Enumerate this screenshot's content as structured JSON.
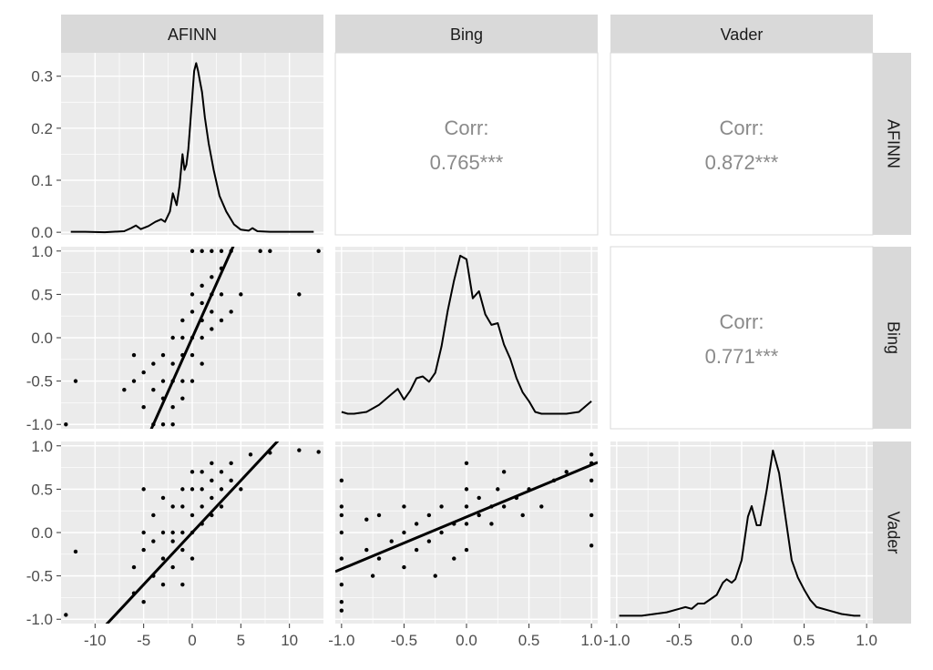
{
  "chart_data": {
    "type": "scatter",
    "variables": [
      "AFINN",
      "Bing",
      "Vader"
    ],
    "axes": {
      "AFINN": {
        "lim": [
          -13.5,
          13.5
        ],
        "ticks": [
          -10,
          -5,
          0,
          5,
          10
        ],
        "tick_labels": [
          "-10",
          "-5",
          "0",
          "5",
          "10"
        ]
      },
      "Bing": {
        "lim": [
          -1.05,
          1.05
        ],
        "ticks": [
          -1,
          -0.5,
          0,
          0.5,
          1
        ],
        "tick_labels": [
          "-1.0",
          "-0.5",
          "0.0",
          "0.5",
          "1.0"
        ]
      },
      "Vader": {
        "lim": [
          -1.05,
          1.05
        ],
        "ticks": [
          -1,
          -0.5,
          0,
          0.5,
          1
        ],
        "tick_labels": [
          "-1.0",
          "-0.5",
          "0.0",
          "0.5",
          "1.0"
        ]
      }
    },
    "density_axis": {
      "lim": [
        -0.005,
        0.345
      ],
      "ticks": [
        0,
        0.1,
        0.2,
        0.3
      ],
      "tick_labels": [
        "0.0",
        "0.1",
        "0.2",
        "0.3"
      ]
    },
    "densities": [
      {
        "variable": "AFINN",
        "x": [
          -12.5,
          -11,
          -9,
          -7,
          -6.3,
          -5.8,
          -5.3,
          -4.5,
          -3.8,
          -3.2,
          -2.8,
          -2.3,
          -2.0,
          -1.6,
          -1.3,
          -1.0,
          -0.8,
          -0.6,
          -0.4,
          -0.2,
          0.0,
          0.2,
          0.4,
          0.6,
          0.8,
          1.0,
          1.3,
          1.7,
          2.2,
          2.8,
          3.5,
          4.3,
          5,
          5.8,
          6.2,
          6.7,
          8,
          10,
          12.5
        ],
        "y": [
          0.001,
          0.001,
          0.0,
          0.002,
          0.008,
          0.013,
          0.006,
          0.012,
          0.02,
          0.025,
          0.02,
          0.04,
          0.075,
          0.052,
          0.09,
          0.15,
          0.12,
          0.13,
          0.16,
          0.21,
          0.26,
          0.31,
          0.325,
          0.31,
          0.29,
          0.27,
          0.22,
          0.17,
          0.12,
          0.07,
          0.04,
          0.015,
          0.005,
          0.003,
          0.008,
          0.002,
          0.001,
          0.001,
          0.001
        ]
      },
      {
        "variable": "Bing",
        "x": [
          -1.0,
          -0.95,
          -0.9,
          -0.8,
          -0.7,
          -0.6,
          -0.55,
          -0.5,
          -0.45,
          -0.4,
          -0.35,
          -0.3,
          -0.25,
          -0.2,
          -0.15,
          -0.1,
          -0.05,
          0.0,
          0.05,
          0.1,
          0.15,
          0.2,
          0.25,
          0.3,
          0.35,
          0.4,
          0.45,
          0.5,
          0.55,
          0.6,
          0.7,
          0.8,
          0.9,
          1.0
        ],
        "y": [
          0.08,
          0.07,
          0.07,
          0.08,
          0.12,
          0.18,
          0.21,
          0.15,
          0.2,
          0.27,
          0.28,
          0.25,
          0.3,
          0.45,
          0.65,
          0.82,
          0.96,
          0.94,
          0.72,
          0.76,
          0.63,
          0.57,
          0.58,
          0.46,
          0.38,
          0.27,
          0.19,
          0.14,
          0.08,
          0.07,
          0.07,
          0.07,
          0.08,
          0.14
        ]
      },
      {
        "variable": "Vader",
        "x": [
          -0.98,
          -0.8,
          -0.7,
          -0.6,
          -0.5,
          -0.45,
          -0.4,
          -0.35,
          -0.3,
          -0.2,
          -0.15,
          -0.12,
          -0.08,
          -0.05,
          0.0,
          0.05,
          0.08,
          0.12,
          0.15,
          0.2,
          0.25,
          0.3,
          0.35,
          0.4,
          0.45,
          0.5,
          0.55,
          0.6,
          0.7,
          0.8,
          0.9,
          0.95
        ],
        "y": [
          0.03,
          0.03,
          0.04,
          0.05,
          0.07,
          0.08,
          0.07,
          0.1,
          0.1,
          0.15,
          0.22,
          0.24,
          0.22,
          0.24,
          0.35,
          0.6,
          0.66,
          0.55,
          0.55,
          0.75,
          0.98,
          0.85,
          0.6,
          0.35,
          0.25,
          0.18,
          0.12,
          0.08,
          0.06,
          0.04,
          0.03,
          0.03
        ]
      }
    ],
    "correlations": [
      {
        "row": "AFINN",
        "col": "Bing",
        "label": "Corr:",
        "value": "0.765***"
      },
      {
        "row": "AFINN",
        "col": "Vader",
        "label": "Corr:",
        "value": "0.872***"
      },
      {
        "row": "Bing",
        "col": "Vader",
        "label": "Corr:",
        "value": "0.771***"
      }
    ],
    "scatter": [
      {
        "x_var": "AFINN",
        "y_var": "Bing",
        "fit": {
          "slope": 0.25,
          "intercept": 0.0
        },
        "points": [
          [
            -13,
            -1.0
          ],
          [
            -12,
            -0.5
          ],
          [
            -7,
            -0.6
          ],
          [
            -6,
            -0.2
          ],
          [
            -6,
            -0.5
          ],
          [
            -5,
            -0.4
          ],
          [
            -5,
            -0.8
          ],
          [
            -4,
            -1.0
          ],
          [
            -4,
            -0.3
          ],
          [
            -4,
            -0.6
          ],
          [
            -3,
            -0.5
          ],
          [
            -3,
            -0.2
          ],
          [
            -3,
            -1.0
          ],
          [
            -3,
            -0.7
          ],
          [
            -2,
            -0.5
          ],
          [
            -2,
            0.0
          ],
          [
            -2,
            -0.3
          ],
          [
            -2,
            -1.0
          ],
          [
            -2,
            -0.8
          ],
          [
            -1,
            -0.5
          ],
          [
            -1,
            0.0
          ],
          [
            -1,
            -0.2
          ],
          [
            -1,
            0.2
          ],
          [
            -1,
            -0.7
          ],
          [
            0,
            0.0
          ],
          [
            0,
            0.3
          ],
          [
            0,
            -0.2
          ],
          [
            0,
            0.5
          ],
          [
            0,
            1.0
          ],
          [
            0,
            -0.5
          ],
          [
            1,
            0.0
          ],
          [
            1,
            0.2
          ],
          [
            1,
            0.4
          ],
          [
            1,
            1.0
          ],
          [
            1,
            0.6
          ],
          [
            1,
            -0.3
          ],
          [
            2,
            0.3
          ],
          [
            2,
            0.5
          ],
          [
            2,
            0.1
          ],
          [
            2,
            1.0
          ],
          [
            2,
            0.7
          ],
          [
            3,
            0.5
          ],
          [
            3,
            0.2
          ],
          [
            3,
            1.0
          ],
          [
            3,
            0.8
          ],
          [
            4,
            0.3
          ],
          [
            4,
            1.0
          ],
          [
            5,
            0.5
          ],
          [
            7,
            1.0
          ],
          [
            8,
            1.0
          ],
          [
            11,
            0.5
          ],
          [
            13,
            1.0
          ]
        ]
      },
      {
        "x_var": "AFINN",
        "y_var": "Vader",
        "fit": {
          "slope": 0.12,
          "intercept": 0.0
        },
        "points": [
          [
            -13,
            -0.95
          ],
          [
            -12,
            -0.22
          ],
          [
            -6,
            -0.7
          ],
          [
            -6,
            -0.4
          ],
          [
            -5,
            -0.8
          ],
          [
            -5,
            0.0
          ],
          [
            -5,
            0.5
          ],
          [
            -5,
            -0.2
          ],
          [
            -4,
            -0.5
          ],
          [
            -4,
            0.2
          ],
          [
            -4,
            -0.1
          ],
          [
            -3,
            -0.3
          ],
          [
            -3,
            0.0
          ],
          [
            -3,
            0.4
          ],
          [
            -3,
            -0.6
          ],
          [
            -2,
            -0.1
          ],
          [
            -2,
            0.3
          ],
          [
            -2,
            -0.4
          ],
          [
            -2,
            0.0
          ],
          [
            -1,
            0.0
          ],
          [
            -1,
            0.3
          ],
          [
            -1,
            -0.2
          ],
          [
            -1,
            0.5
          ],
          [
            -1,
            -0.6
          ],
          [
            0,
            0.2
          ],
          [
            0,
            0.0
          ],
          [
            0,
            0.5
          ],
          [
            0,
            -0.3
          ],
          [
            0,
            0.7
          ],
          [
            1,
            0.3
          ],
          [
            1,
            0.5
          ],
          [
            1,
            0.1
          ],
          [
            1,
            0.7
          ],
          [
            2,
            0.4
          ],
          [
            2,
            0.6
          ],
          [
            2,
            0.2
          ],
          [
            2,
            0.8
          ],
          [
            3,
            0.5
          ],
          [
            3,
            0.7
          ],
          [
            3,
            0.3
          ],
          [
            4,
            0.6
          ],
          [
            4,
            0.8
          ],
          [
            5,
            0.5
          ],
          [
            6,
            0.9
          ],
          [
            8,
            0.92
          ],
          [
            11,
            0.95
          ],
          [
            13,
            0.93
          ]
        ]
      },
      {
        "x_var": "Bing",
        "y_var": "Vader",
        "fit": {
          "slope": 0.6,
          "intercept": 0.18
        },
        "points": [
          [
            -1,
            0.6
          ],
          [
            -1,
            0.3
          ],
          [
            -1,
            0.0
          ],
          [
            -1,
            -0.3
          ],
          [
            -1,
            -0.6
          ],
          [
            -1,
            -0.8
          ],
          [
            -1,
            -0.9
          ],
          [
            -1,
            0.2
          ],
          [
            -0.8,
            -0.2
          ],
          [
            -0.8,
            0.15
          ],
          [
            -0.75,
            -0.5
          ],
          [
            -0.7,
            0.2
          ],
          [
            -0.7,
            -0.3
          ],
          [
            -0.6,
            -0.1
          ],
          [
            -0.5,
            0.0
          ],
          [
            -0.5,
            -0.4
          ],
          [
            -0.5,
            0.3
          ],
          [
            -0.4,
            -0.2
          ],
          [
            -0.4,
            0.1
          ],
          [
            -0.3,
            -0.1
          ],
          [
            -0.3,
            0.2
          ],
          [
            -0.25,
            -0.5
          ],
          [
            -0.2,
            0.0
          ],
          [
            -0.2,
            0.3
          ],
          [
            -0.1,
            0.1
          ],
          [
            -0.1,
            -0.3
          ],
          [
            0,
            0.1
          ],
          [
            0,
            0.3
          ],
          [
            0,
            -0.2
          ],
          [
            0,
            0.5
          ],
          [
            0,
            0.8
          ],
          [
            0.1,
            0.2
          ],
          [
            0.1,
            0.4
          ],
          [
            0.2,
            0.3
          ],
          [
            0.2,
            0.1
          ],
          [
            0.25,
            0.5
          ],
          [
            0.3,
            0.3
          ],
          [
            0.3,
            0.7
          ],
          [
            0.4,
            0.4
          ],
          [
            0.45,
            0.2
          ],
          [
            0.5,
            0.5
          ],
          [
            0.6,
            0.3
          ],
          [
            0.7,
            0.6
          ],
          [
            0.8,
            0.7
          ],
          [
            1,
            0.9
          ],
          [
            1,
            0.8
          ],
          [
            1,
            0.6
          ],
          [
            1,
            0.2
          ],
          [
            1,
            -0.15
          ]
        ]
      }
    ]
  }
}
